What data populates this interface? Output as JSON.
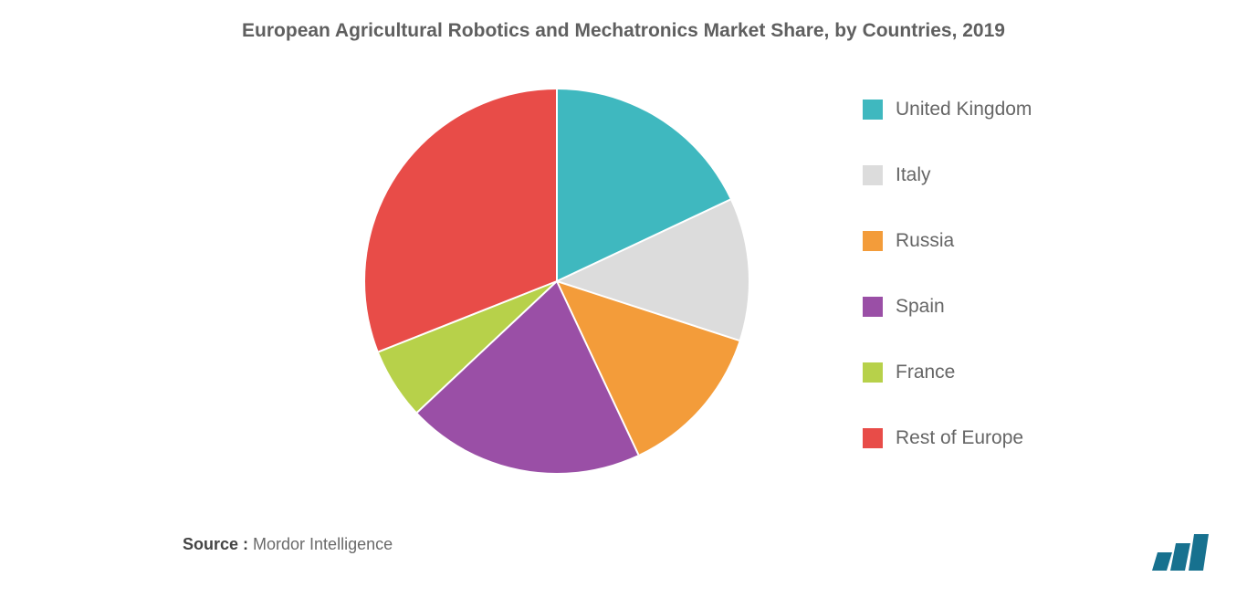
{
  "chart": {
    "type": "pie",
    "title": "European Agricultural Robotics and Mechatronics Market Share, by Countries, 2019",
    "title_fontsize": 21,
    "title_color": "#5f5f5f",
    "title_fontweight": "600",
    "background_color": "#ffffff",
    "slices": [
      {
        "label": "United Kingdom",
        "value": 18,
        "color": "#3fb8bf"
      },
      {
        "label": "Italy",
        "value": 12,
        "color": "#dcdcdc"
      },
      {
        "label": "Russia",
        "value": 13,
        "color": "#f39c3a"
      },
      {
        "label": "Spain",
        "value": 20,
        "color": "#9a4fa6"
      },
      {
        "label": "France",
        "value": 6,
        "color": "#b7d14a"
      },
      {
        "label": "Rest of Europe",
        "value": 31,
        "color": "#e84c48"
      }
    ],
    "slice_border_color": "#ffffff",
    "slice_border_width": 2,
    "legend": {
      "position": "right",
      "fontsize": 21,
      "color": "#666666",
      "swatch_size": 22,
      "item_gap": 48
    },
    "pie_diameter": 420
  },
  "source": {
    "label": "Source :",
    "value": " Mordor Intelligence",
    "fontsize": 18,
    "label_color": "#444444",
    "value_color": "#6a6a6a"
  },
  "brand": {
    "name": "mordor-intelligence-logo",
    "bar_color": "#17718f",
    "bar_count": 3
  }
}
